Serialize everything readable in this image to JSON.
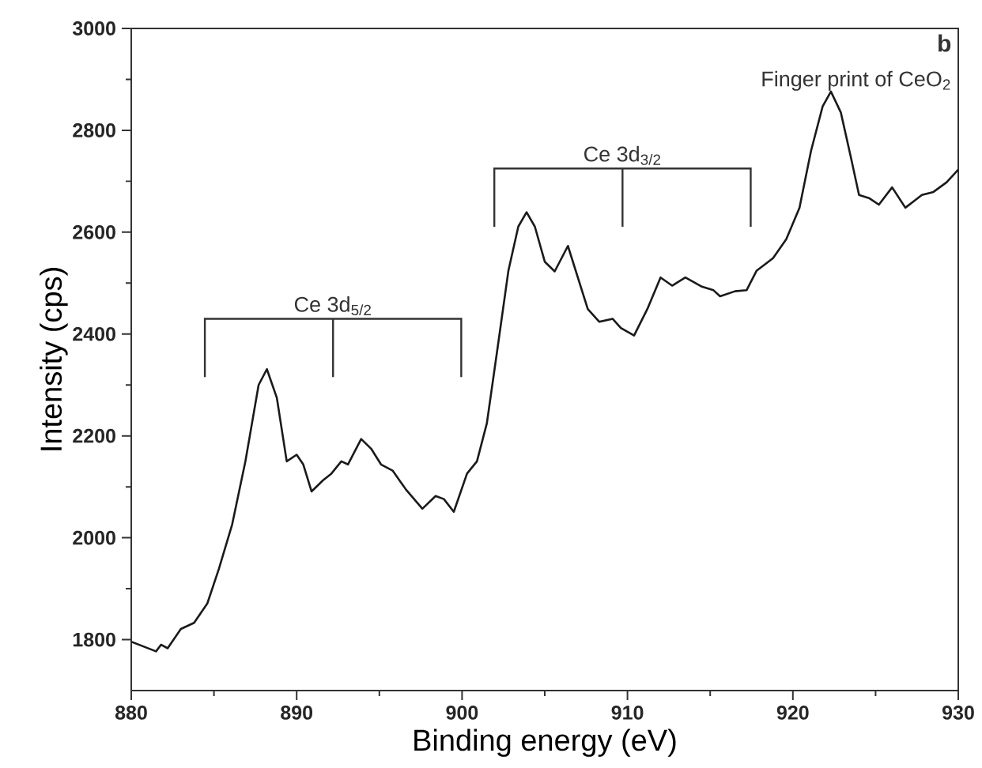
{
  "chart_data": {
    "type": "line",
    "xlabel": "Binding energy (eV)",
    "ylabel": "Intensity (cps)",
    "xlim": [
      880,
      930
    ],
    "ylim": [
      1700,
      3000
    ],
    "xticks": [
      880,
      890,
      900,
      910,
      920,
      930
    ],
    "yticks": [
      1800,
      2000,
      2200,
      2400,
      2600,
      2800,
      3000
    ],
    "grid": false,
    "marker": "none",
    "line_style": "solid",
    "annotations": [
      "b",
      "Finger print of CeO$_{2}$",
      "Ce 3d$_{5/2}$",
      "Ce 3d$_{3/2}$"
    ],
    "series": [
      {
        "color": "#1a1a1a",
        "x": [
          880,
          881.5,
          881.8,
          882.2,
          883,
          883.8,
          884.6,
          885.3,
          886.1,
          886.9,
          887.7,
          888.2,
          888.8,
          889.4,
          890.0,
          890.4,
          890.9,
          891.6,
          892.1,
          892.7,
          893.1,
          893.9,
          894.5,
          895.1,
          895.8,
          896.6,
          897.6,
          898.4,
          898.9,
          899.5,
          900.3,
          900.9,
          901.5,
          902.1,
          902.8,
          903.4,
          903.9,
          904.4,
          905.0,
          905.6,
          906.4,
          907.0,
          907.6,
          908.3,
          909.1,
          909.6,
          910.4,
          911.2,
          912.0,
          912.7,
          913.5,
          914.5,
          915.2,
          915.6,
          916.5,
          917.2,
          917.8,
          918.8,
          919.6,
          920.4,
          921.1,
          921.8,
          922.3,
          922.9,
          923.5,
          924.0,
          924.6,
          925.2,
          926.0,
          926.8,
          927.8,
          928.5,
          929.3,
          930
        ],
        "values": [
          1796,
          1777,
          1790,
          1783,
          1821,
          1833,
          1871,
          1939,
          2026,
          2150,
          2300,
          2331,
          2275,
          2150,
          2163,
          2144,
          2091,
          2113,
          2126,
          2150,
          2144,
          2194,
          2175,
          2144,
          2132,
          2095,
          2057,
          2082,
          2076,
          2051,
          2126,
          2150,
          2225,
          2362,
          2524,
          2611,
          2639,
          2611,
          2542,
          2523,
          2573,
          2511,
          2449,
          2424,
          2430,
          2412,
          2397,
          2449,
          2511,
          2495,
          2511,
          2493,
          2486,
          2474,
          2484,
          2486,
          2524,
          2549,
          2586,
          2648,
          2760,
          2847,
          2876,
          2835,
          2748,
          2673,
          2667,
          2654,
          2688,
          2648,
          2673,
          2679,
          2698,
          2723
        ]
      }
    ]
  }
}
